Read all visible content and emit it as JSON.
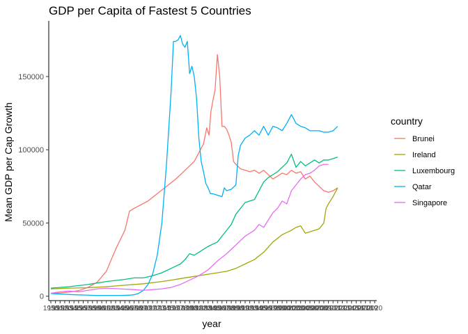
{
  "chart_data": {
    "type": "line",
    "title": "GDP per Capita of Fastest 5 Countries",
    "xlabel": "year",
    "ylabel": "Mean GDP per Cap Growth",
    "xlim": [
      1950,
      2020
    ],
    "ylim": [
      -3000,
      188000
    ],
    "yticks": [
      0,
      50000,
      100000,
      150000
    ],
    "ytick_labels": [
      "0",
      "50000",
      "100000",
      "150000"
    ],
    "xtick_labels": [
      "1950",
      "1951",
      "1952",
      "1953",
      "1954",
      "1955",
      "1956",
      "1957",
      "1958",
      "1959",
      "1960",
      "1961",
      "1962",
      "1963",
      "1964",
      "1965",
      "1966",
      "1967",
      "1968",
      "1969",
      "1970",
      "1971",
      "1972",
      "1973",
      "1974",
      "1975",
      "1976",
      "1977",
      "1978",
      "1979",
      "1980",
      "1981",
      "1982",
      "1983",
      "1984",
      "1985",
      "1986",
      "1987",
      "1988",
      "1989",
      "1990",
      "1991",
      "1992",
      "1993",
      "1994",
      "1995",
      "1996",
      "1997",
      "1998",
      "1999",
      "2000",
      "2001",
      "2002",
      "2003",
      "2004",
      "2005",
      "2006",
      "2007",
      "2008",
      "2009",
      "2010",
      "2011",
      "2012",
      "2013",
      "2014",
      "2015",
      "2016",
      "2017",
      "2018",
      "2019",
      "2020"
    ],
    "legend": {
      "title": "country",
      "position": "right"
    },
    "grid": false,
    "series": [
      {
        "name": "Brunei",
        "color": "#F8766D",
        "points": [
          [
            1950,
            2000
          ],
          [
            1952,
            2200
          ],
          [
            1954,
            2800
          ],
          [
            1956,
            3800
          ],
          [
            1958,
            6000
          ],
          [
            1960,
            9500
          ],
          [
            1962,
            17000
          ],
          [
            1964,
            32000
          ],
          [
            1966,
            45000
          ],
          [
            1967,
            58000
          ],
          [
            1968,
            60000
          ],
          [
            1971,
            65000
          ],
          [
            1973,
            70000
          ],
          [
            1975,
            75000
          ],
          [
            1977,
            80000
          ],
          [
            1979,
            86000
          ],
          [
            1981,
            92000
          ],
          [
            1982,
            98000
          ],
          [
            1983,
            104000
          ],
          [
            1983.7,
            115000
          ],
          [
            1984.2,
            110000
          ],
          [
            1984.6,
            126000
          ],
          [
            1985,
            133000
          ],
          [
            1985.5,
            141000
          ],
          [
            1986,
            165000
          ],
          [
            1986.5,
            150000
          ],
          [
            1987,
            116000
          ],
          [
            1987.5,
            116000
          ],
          [
            1988,
            114000
          ],
          [
            1988.5,
            110000
          ],
          [
            1989,
            105000
          ],
          [
            1989.5,
            92000
          ],
          [
            1990,
            90000
          ],
          [
            1991,
            87000
          ],
          [
            1992,
            86000
          ],
          [
            1993,
            85000
          ],
          [
            1994,
            86000
          ],
          [
            1995,
            84000
          ],
          [
            1996,
            86000
          ],
          [
            1997,
            83000
          ],
          [
            1998,
            80000
          ],
          [
            1999,
            82000
          ],
          [
            2000,
            84000
          ],
          [
            2001,
            83000
          ],
          [
            2002,
            86000
          ],
          [
            2003,
            84000
          ],
          [
            2004,
            85000
          ],
          [
            2005,
            80000
          ],
          [
            2006,
            82000
          ],
          [
            2007,
            78000
          ],
          [
            2008,
            75000
          ],
          [
            2009,
            72000
          ],
          [
            2010,
            71000
          ],
          [
            2011,
            72000
          ],
          [
            2012,
            74000
          ]
        ]
      },
      {
        "name": "Ireland",
        "color": "#A3A500",
        "points": [
          [
            1950,
            5000
          ],
          [
            1954,
            5500
          ],
          [
            1958,
            5800
          ],
          [
            1962,
            6500
          ],
          [
            1966,
            7500
          ],
          [
            1970,
            8500
          ],
          [
            1974,
            10000
          ],
          [
            1977,
            11500
          ],
          [
            1980,
            13000
          ],
          [
            1983,
            14500
          ],
          [
            1986,
            16000
          ],
          [
            1988,
            17000
          ],
          [
            1990,
            19000
          ],
          [
            1992,
            22000
          ],
          [
            1994,
            25000
          ],
          [
            1996,
            30000
          ],
          [
            1998,
            37000
          ],
          [
            2000,
            42000
          ],
          [
            2002,
            45000
          ],
          [
            2003,
            47000
          ],
          [
            2004,
            48000
          ],
          [
            2005,
            43000
          ],
          [
            2006,
            44000
          ],
          [
            2007,
            45000
          ],
          [
            2008,
            46000
          ],
          [
            2009,
            50000
          ],
          [
            2009.5,
            60000
          ],
          [
            2010,
            63000
          ],
          [
            2011,
            68000
          ],
          [
            2012,
            74000
          ]
        ]
      },
      {
        "name": "Luxembourg",
        "color": "#00BF7D",
        "points": [
          [
            1950,
            5500
          ],
          [
            1954,
            6500
          ],
          [
            1958,
            8000
          ],
          [
            1962,
            10000
          ],
          [
            1966,
            11500
          ],
          [
            1968,
            12500
          ],
          [
            1970,
            12500
          ],
          [
            1972,
            14000
          ],
          [
            1974,
            16000
          ],
          [
            1976,
            19000
          ],
          [
            1978,
            22000
          ],
          [
            1979,
            25000
          ],
          [
            1980,
            29000
          ],
          [
            1981,
            28000
          ],
          [
            1982,
            30000
          ],
          [
            1983,
            32000
          ],
          [
            1984,
            34000
          ],
          [
            1986,
            37000
          ],
          [
            1987,
            41000
          ],
          [
            1988,
            45000
          ],
          [
            1989,
            49000
          ],
          [
            1990,
            56000
          ],
          [
            1991,
            60000
          ],
          [
            1992,
            64000
          ],
          [
            1993,
            65000
          ],
          [
            1994,
            66000
          ],
          [
            1995,
            72000
          ],
          [
            1996,
            78000
          ],
          [
            1997,
            81000
          ],
          [
            1998,
            83000
          ],
          [
            1999,
            85000
          ],
          [
            2000,
            88000
          ],
          [
            2001,
            91000
          ],
          [
            2002,
            97000
          ],
          [
            2003,
            88000
          ],
          [
            2004,
            92000
          ],
          [
            2005,
            89000
          ],
          [
            2006,
            91000
          ],
          [
            2007,
            93000
          ],
          [
            2008,
            91000
          ],
          [
            2009,
            93000
          ],
          [
            2010,
            93000
          ],
          [
            2011,
            94000
          ],
          [
            2012,
            95000
          ]
        ]
      },
      {
        "name": "Qatar",
        "color": "#00B0F6",
        "points": [
          [
            1950,
            1800
          ],
          [
            1955,
            1000
          ],
          [
            1960,
            500
          ],
          [
            1965,
            500
          ],
          [
            1967,
            700
          ],
          [
            1968,
            1000
          ],
          [
            1969,
            2000
          ],
          [
            1970,
            4000
          ],
          [
            1971,
            8000
          ],
          [
            1972,
            15000
          ],
          [
            1973,
            28000
          ],
          [
            1974,
            50000
          ],
          [
            1975,
            90000
          ],
          [
            1976,
            140000
          ],
          [
            1976.5,
            174000
          ],
          [
            1977,
            174000
          ],
          [
            1977.5,
            175000
          ],
          [
            1978,
            178000
          ],
          [
            1978.5,
            172000
          ],
          [
            1979,
            170000
          ],
          [
            1979.5,
            174000
          ],
          [
            1980,
            152000
          ],
          [
            1980.5,
            157000
          ],
          [
            1981,
            150000
          ],
          [
            1981.5,
            135000
          ],
          [
            1982,
            108000
          ],
          [
            1982.5,
            92000
          ],
          [
            1983,
            85000
          ],
          [
            1983.5,
            77000
          ],
          [
            1984,
            74000
          ],
          [
            1984.5,
            70000
          ],
          [
            1985,
            70000
          ],
          [
            1986,
            69000
          ],
          [
            1987,
            68000
          ],
          [
            1987.5,
            74000
          ],
          [
            1988,
            72000
          ],
          [
            1989,
            73000
          ],
          [
            1990,
            76000
          ],
          [
            1990.5,
            96000
          ],
          [
            1991,
            103000
          ],
          [
            1992,
            108000
          ],
          [
            1993,
            110000
          ],
          [
            1994,
            113000
          ],
          [
            1995,
            110000
          ],
          [
            1996,
            116000
          ],
          [
            1997,
            110000
          ],
          [
            1998,
            116000
          ],
          [
            1999,
            115000
          ],
          [
            2000,
            113000
          ],
          [
            2001,
            118000
          ],
          [
            2002,
            124000
          ],
          [
            2003,
            118000
          ],
          [
            2004,
            116000
          ],
          [
            2005,
            115000
          ],
          [
            2006,
            113000
          ],
          [
            2007,
            113000
          ],
          [
            2008,
            113000
          ],
          [
            2009,
            112000
          ],
          [
            2010,
            112000
          ],
          [
            2011,
            113000
          ],
          [
            2012,
            116000
          ]
        ]
      },
      {
        "name": "Singapore",
        "color": "#E76BF3",
        "points": [
          [
            1950,
            2000
          ],
          [
            1952,
            3000
          ],
          [
            1954,
            3500
          ],
          [
            1956,
            3000
          ],
          [
            1958,
            4000
          ],
          [
            1960,
            5000
          ],
          [
            1962,
            5500
          ],
          [
            1965,
            5000
          ],
          [
            1968,
            4500
          ],
          [
            1970,
            4000
          ],
          [
            1972,
            4500
          ],
          [
            1974,
            5000
          ],
          [
            1976,
            6000
          ],
          [
            1978,
            8000
          ],
          [
            1980,
            11000
          ],
          [
            1982,
            14000
          ],
          [
            1984,
            18000
          ],
          [
            1986,
            24000
          ],
          [
            1988,
            29000
          ],
          [
            1990,
            35000
          ],
          [
            1992,
            41000
          ],
          [
            1994,
            45000
          ],
          [
            1995,
            49000
          ],
          [
            1996,
            47000
          ],
          [
            1997,
            52000
          ],
          [
            1998,
            57000
          ],
          [
            1999,
            60000
          ],
          [
            2000,
            65000
          ],
          [
            2001,
            63000
          ],
          [
            2002,
            72000
          ],
          [
            2003,
            76000
          ],
          [
            2004,
            80000
          ],
          [
            2005,
            83000
          ],
          [
            2006,
            84000
          ],
          [
            2007,
            86000
          ],
          [
            2008,
            89000
          ],
          [
            2009,
            90000
          ],
          [
            2010,
            90000
          ]
        ]
      }
    ]
  }
}
